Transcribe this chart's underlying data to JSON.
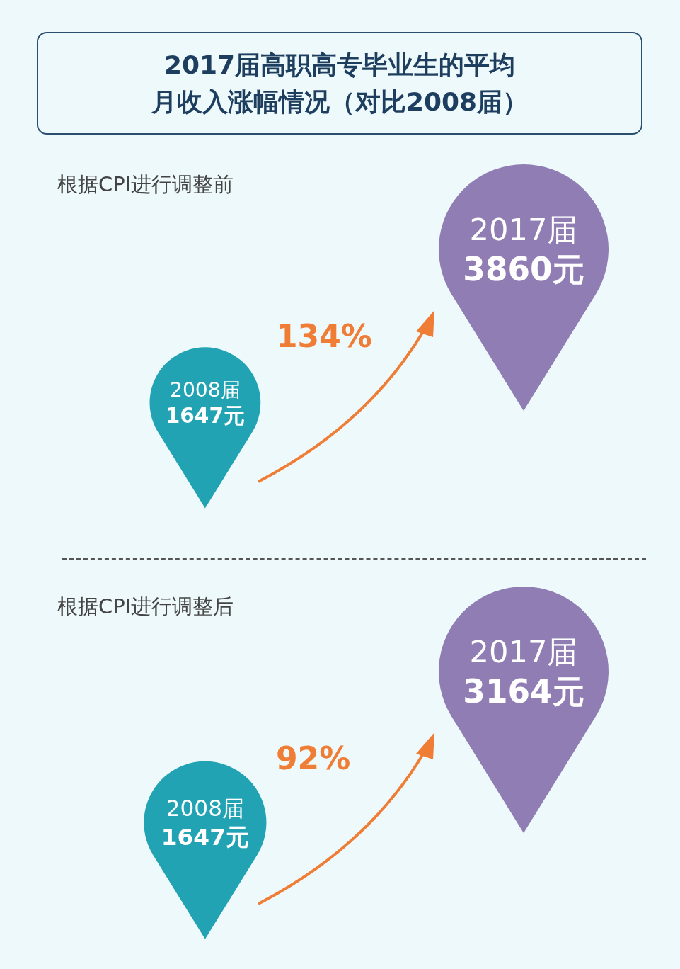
{
  "chart_data": [
    {
      "type": "other",
      "title": "2017届高职高专毕业生的平均月收入涨幅情况（对比2008届）",
      "subtitle": "根据CPI进行调整前",
      "categories": [
        "2008届",
        "2017届"
      ],
      "values": [
        1647,
        3860
      ],
      "value_labels": [
        "1647元",
        "3860元"
      ],
      "colors": [
        "#22a3b3",
        "#8f7db3"
      ],
      "annotations": [
        "134%"
      ]
    },
    {
      "type": "other",
      "subtitle": "根据CPI进行调整后",
      "categories": [
        "2008届",
        "2017届"
      ],
      "values": [
        1647,
        3164
      ],
      "value_labels": [
        "1647元",
        "3164元"
      ],
      "colors": [
        "#22a3b3",
        "#8f7db3"
      ],
      "annotations": [
        "92%"
      ]
    }
  ]
}
